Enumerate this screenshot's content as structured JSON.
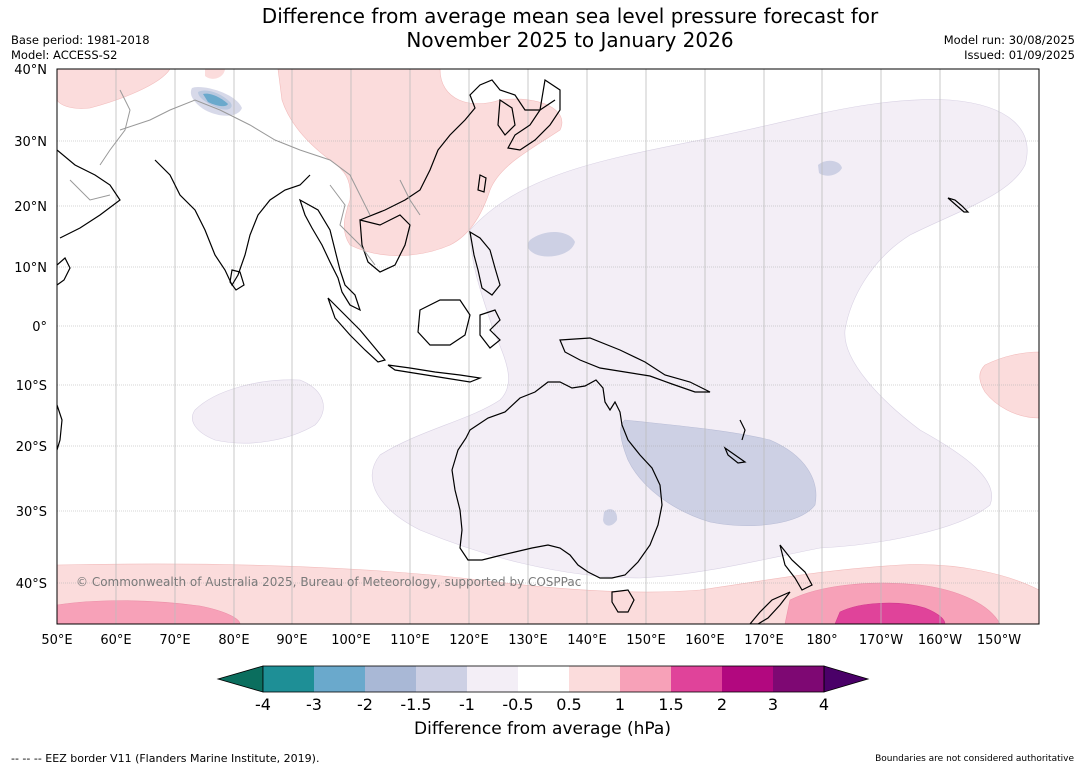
{
  "title": {
    "line1": "Difference from average mean sea level pressure forecast for",
    "line2": "November 2025 to January 2026"
  },
  "meta_left": {
    "base_period": "Base period: 1981-2018",
    "model": "Model: ACCESS-S2"
  },
  "meta_right": {
    "model_run": "Model run: 30/08/2025",
    "issued": "Issued: 01/09/2025"
  },
  "map": {
    "lat_labels": [
      "40°N",
      "30°N",
      "20°N",
      "10°N",
      "0°",
      "10°S",
      "20°S",
      "30°S",
      "40°S"
    ],
    "lon_labels": [
      "50°E",
      "60°E",
      "70°E",
      "80°E",
      "90°E",
      "100°E",
      "110°E",
      "120°E",
      "130°E",
      "140°E",
      "150°E",
      "160°E",
      "170°E",
      "180°",
      "170°W",
      "160°W",
      "150°W"
    ],
    "copyright": "© Commonwealth of Australia 2025, Bureau of Meteorology, supported by COSPPac"
  },
  "colorbar": {
    "ticks": [
      "-4",
      "-3",
      "-2",
      "-1.5",
      "-1",
      "-0.5",
      "0.5",
      "1",
      "1.5",
      "2",
      "3",
      "4"
    ],
    "colors": [
      "#0b6e5e",
      "#1e8f96",
      "#6aa9cc",
      "#a9b8d6",
      "#cdd0e4",
      "#f3eef6",
      "#ffffff",
      "#fbdcdc",
      "#f7a1b8",
      "#e0439a",
      "#b2087f",
      "#7e0873",
      "#4a0068"
    ],
    "label": "Difference from average (hPa)"
  },
  "footer": {
    "eez": "--  --  -- EEZ border V11 (Flanders Marine Institute, 2019).",
    "disclaimer": "Boundaries are not considered authoritative"
  }
}
